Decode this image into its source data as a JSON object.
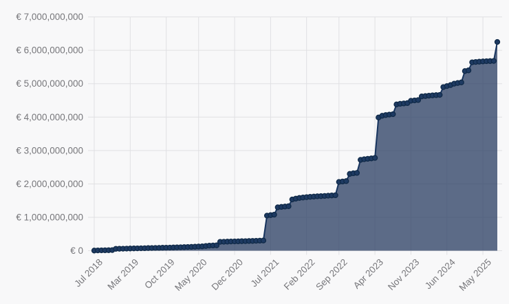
{
  "chart_data": {
    "type": "area",
    "title": "",
    "xlabel": "",
    "ylabel": "",
    "currency_prefix": "€ ",
    "grid": true,
    "legend": false,
    "y_axis": {
      "min": 0,
      "max": 7000000000,
      "tick_values": [
        0,
        1000000000,
        2000000000,
        3000000000,
        4000000000,
        5000000000,
        6000000000,
        7000000000
      ],
      "tick_labels": [
        "€ 0",
        "€ 1,000,000,000",
        "€ 2,000,000,000",
        "€ 3,000,000,000",
        "€ 4,000,000,000",
        "€ 5,000,000,000",
        "€ 6,000,000,000",
        "€ 7,000,000,000"
      ]
    },
    "x_ticks": [
      {
        "label": "Jul 2018",
        "index": 0
      },
      {
        "label": "Mar 2019",
        "index": 10
      },
      {
        "label": "Oct 2019",
        "index": 20
      },
      {
        "label": "May 2020",
        "index": 29
      },
      {
        "label": "Dec 2020",
        "index": 39
      },
      {
        "label": "Jul 2021",
        "index": 49
      },
      {
        "label": "Feb 2022",
        "index": 59
      },
      {
        "label": "Sep 2022",
        "index": 68
      },
      {
        "label": "Apr 2023",
        "index": 78
      },
      {
        "label": "Nov 2023",
        "index": 88
      },
      {
        "label": "Jun 2024",
        "index": 98
      },
      {
        "label": "May 2025",
        "index": 108
      }
    ],
    "values_eur": [
      5000000,
      8000000,
      10000000,
      12000000,
      15000000,
      18000000,
      55000000,
      58000000,
      60000000,
      62000000,
      65000000,
      68000000,
      70000000,
      73000000,
      75000000,
      78000000,
      80000000,
      83000000,
      85000000,
      88000000,
      90000000,
      93000000,
      96000000,
      100000000,
      104000000,
      108000000,
      112000000,
      116000000,
      120000000,
      125000000,
      130000000,
      140000000,
      152000000,
      156000000,
      160000000,
      265000000,
      268000000,
      272000000,
      275000000,
      278000000,
      281000000,
      284000000,
      287000000,
      290000000,
      293000000,
      296000000,
      300000000,
      305000000,
      1050000000,
      1065000000,
      1080000000,
      1300000000,
      1312000000,
      1322000000,
      1332000000,
      1535000000,
      1560000000,
      1580000000,
      1592000000,
      1602000000,
      1612000000,
      1620000000,
      1628000000,
      1634000000,
      1640000000,
      1648000000,
      1654000000,
      1660000000,
      2060000000,
      2072000000,
      2085000000,
      2300000000,
      2318000000,
      2330000000,
      2720000000,
      2740000000,
      2752000000,
      2764000000,
      2778000000,
      3990000000,
      4040000000,
      4062000000,
      4075000000,
      4088000000,
      4380000000,
      4398000000,
      4410000000,
      4420000000,
      4490000000,
      4500000000,
      4510000000,
      4620000000,
      4630000000,
      4642000000,
      4650000000,
      4658000000,
      4665000000,
      4900000000,
      4930000000,
      4960000000,
      5000000000,
      5020000000,
      5040000000,
      5380000000,
      5400000000,
      5640000000,
      5652000000,
      5660000000,
      5668000000,
      5674000000,
      5678000000,
      5682000000,
      6250000000
    ],
    "colors": {
      "background": "#f8f8f9",
      "grid": "#e0e0e3",
      "tick_text": "#76767a",
      "area_fill": "rgba(47,67,103,0.78)",
      "line": "#17345e",
      "point_fill": "#1e3a62",
      "point_border": "#0f2947"
    }
  }
}
